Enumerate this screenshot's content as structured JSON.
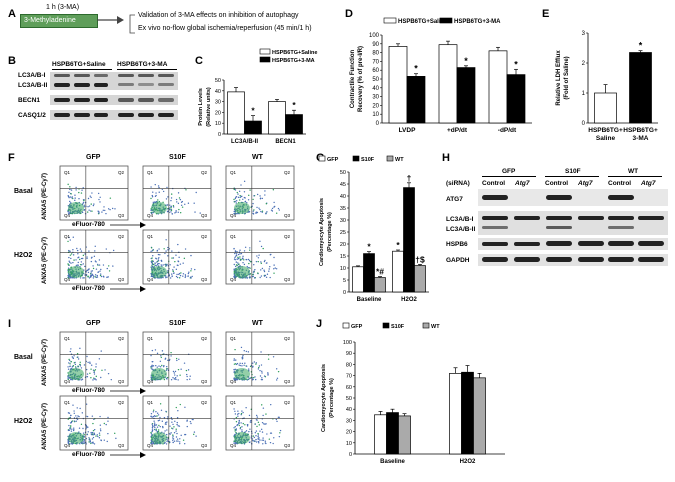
{
  "panels": {
    "A": {
      "label": "A",
      "time_label": "1 h (3-MA)",
      "box_label": "3-Methyladenine",
      "lines": [
        "Validation of 3-MA effects on inhibition of autophagy",
        "Ex vivo no-flow global ischemia/reperfusion (45 min/1 h)"
      ]
    },
    "B": {
      "label": "B",
      "groups": [
        "HSPB6TG+Saline",
        "HSPB6TG+3-MA"
      ],
      "bands": [
        "LC3A/B-I",
        "LC3A/B-II",
        "BECN1",
        "CASQ1/2"
      ]
    },
    "C": {
      "label": "C"
    },
    "D": {
      "label": "D"
    },
    "E": {
      "label": "E"
    },
    "F": {
      "label": "F",
      "cols": [
        "GFP",
        "S10F",
        "WT"
      ],
      "rows": [
        "Basal",
        "H2O2"
      ],
      "x_axis": "eFluor-780",
      "y_axis": "ANXA5 (PE-Cy7)",
      "quadrants": [
        "Q1",
        "Q2",
        "Q3",
        "Q4"
      ]
    },
    "G": {
      "label": "G"
    },
    "H": {
      "label": "H",
      "cols": [
        "GFP",
        "S10F",
        "WT"
      ],
      "sirna": "(siRNA)",
      "conditions": [
        "Control",
        "Atg7",
        "Control",
        "Atg7",
        "Control",
        "Atg7"
      ],
      "bands": [
        "ATG7",
        "LC3A/B-I",
        "LC3A/B-II",
        "HSPB6",
        "GAPDH"
      ]
    },
    "I": {
      "label": "I",
      "cols": [
        "GFP",
        "S10F",
        "WT"
      ],
      "rows": [
        "Basal",
        "H2O2"
      ],
      "x_axis": "eFluor-780",
      "y_axis": "ANXA5 (PE-Cy7)"
    },
    "J": {
      "label": "J"
    }
  },
  "chart_data": [
    {
      "id": "C",
      "type": "bar",
      "categories": [
        "LC3A/B-II",
        "BECN1"
      ],
      "series": [
        {
          "name": "HSPB6TG+Saline",
          "values": [
            39,
            30
          ],
          "errors": [
            4,
            2
          ],
          "color": "#ffffff"
        },
        {
          "name": "HSPB6TG+3-MA",
          "values": [
            12,
            18
          ],
          "errors": [
            5,
            4
          ],
          "color": "#000000"
        }
      ],
      "title": "",
      "ylabel": "Protein Levels (Relative units)",
      "ylim": [
        0,
        50
      ],
      "yticks": [
        0,
        10,
        20,
        30,
        40,
        50
      ],
      "annotations": [
        "*",
        "*"
      ],
      "legend": "top-right"
    },
    {
      "id": "D",
      "type": "bar",
      "categories": [
        "LVDP",
        "+dP/dt",
        "-dP/dt"
      ],
      "series": [
        {
          "name": "HSPB6TG+Saline",
          "values": [
            87,
            89,
            82
          ],
          "errors": [
            3,
            4,
            4
          ],
          "color": "#ffffff"
        },
        {
          "name": "HSPB6TG+3-MA",
          "values": [
            53,
            63,
            55
          ],
          "errors": [
            3,
            2,
            6
          ],
          "color": "#000000"
        }
      ],
      "ylabel": "Contractile Function Recovery (% of pre-I/R)",
      "ylim": [
        0,
        100
      ],
      "yticks": [
        0,
        10,
        20,
        30,
        40,
        50,
        60,
        70,
        80,
        90,
        100
      ],
      "annotations": [
        "*",
        "*",
        "*"
      ],
      "legend": "top"
    },
    {
      "id": "E",
      "type": "bar",
      "categories": [
        "HSPB6TG+ Saline",
        "HSPB6TG+ 3-MA"
      ],
      "values": [
        1.0,
        2.35
      ],
      "errors": [
        0.28,
        0.06
      ],
      "colors": [
        "#ffffff",
        "#000000"
      ],
      "ylabel": "Relative LDH Efflux (Fold of Saline)",
      "ylim": [
        0,
        3
      ],
      "yticks": [
        0,
        1,
        2,
        3
      ],
      "annotations": [
        "",
        "*"
      ]
    },
    {
      "id": "G",
      "type": "bar",
      "categories": [
        "Baseline",
        "H2O2"
      ],
      "series": [
        {
          "name": "GFP",
          "values": [
            10.5,
            17
          ],
          "errors": [
            0.4,
            0.5
          ],
          "color": "#ffffff"
        },
        {
          "name": "S10F",
          "values": [
            16,
            43.5
          ],
          "errors": [
            0.8,
            2
          ],
          "color": "#000000"
        },
        {
          "name": "WT",
          "values": [
            6,
            11
          ],
          "errors": [
            0.4,
            0.5
          ],
          "color": "#aaaaaa"
        }
      ],
      "ylabel": "Cardiomyocyte Apoptosis (Percentage %)",
      "ylim": [
        0,
        50
      ],
      "yticks": [
        0,
        5,
        10,
        15,
        20,
        25,
        30,
        35,
        40,
        45,
        50
      ],
      "annotations": [
        [
          "",
          "*",
          "*#"
        ],
        [
          "*",
          "†",
          "†$"
        ]
      ],
      "legend": "top"
    },
    {
      "id": "J",
      "type": "bar",
      "categories": [
        "Baseline",
        "H2O2"
      ],
      "series": [
        {
          "name": "GFP",
          "values": [
            35,
            72
          ],
          "errors": [
            3,
            5
          ],
          "color": "#ffffff"
        },
        {
          "name": "S10F",
          "values": [
            37,
            73
          ],
          "errors": [
            3,
            6
          ],
          "color": "#000000"
        },
        {
          "name": "WT",
          "values": [
            34,
            68
          ],
          "errors": [
            2,
            4
          ],
          "color": "#aaaaaa"
        }
      ],
      "ylabel": "Cardiomyocyte Apoptosis (Percentage %)",
      "ylim": [
        0,
        100
      ],
      "yticks": [
        0,
        10,
        20,
        30,
        40,
        50,
        60,
        70,
        80,
        90,
        100
      ],
      "legend": "top"
    }
  ]
}
